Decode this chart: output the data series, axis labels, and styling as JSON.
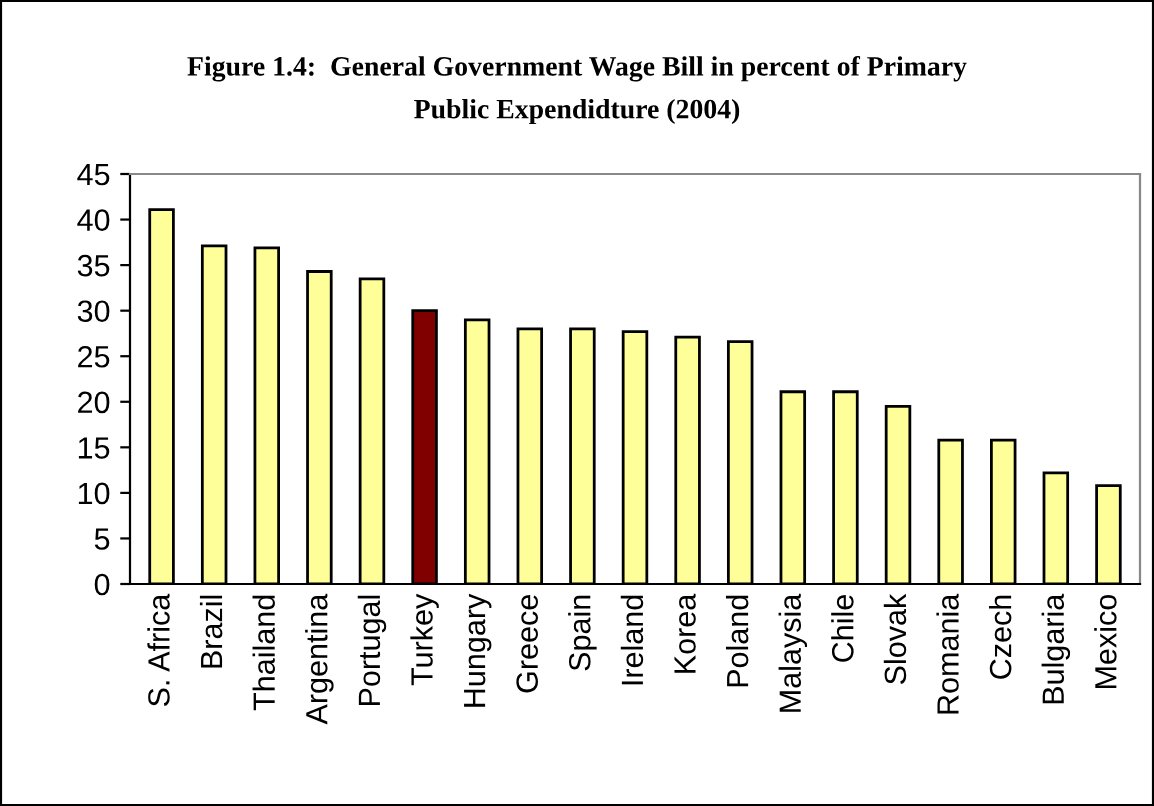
{
  "chart_data": {
    "type": "bar",
    "title": "Figure 1.4:  General Government Wage Bill in percent of Primary\nPublic Expendidture (2004)",
    "categories": [
      "S. Africa",
      "Brazil",
      "Thailand",
      "Argentina",
      "Portugal",
      "Turkey",
      "Hungary",
      "Greece",
      "Spain",
      "Ireland",
      "Korea",
      "Poland",
      "Malaysia",
      "Chile",
      "Slovak",
      "Romania",
      "Czech",
      "Bulgaria",
      "Mexico"
    ],
    "values": [
      41.1,
      37.1,
      36.9,
      34.3,
      33.5,
      30.0,
      29.0,
      28.0,
      28.0,
      27.7,
      27.1,
      26.6,
      21.1,
      21.1,
      19.5,
      15.8,
      15.8,
      12.2,
      10.8
    ],
    "colors": [
      "#ffff99",
      "#ffff99",
      "#ffff99",
      "#ffff99",
      "#ffff99",
      "#800000",
      "#ffff99",
      "#ffff99",
      "#ffff99",
      "#ffff99",
      "#ffff99",
      "#ffff99",
      "#ffff99",
      "#ffff99",
      "#ffff99",
      "#ffff99",
      "#ffff99",
      "#ffff99",
      "#ffff99"
    ],
    "ylim": [
      0,
      45
    ],
    "yticks": [
      0,
      5,
      10,
      15,
      20,
      25,
      30,
      35,
      40,
      45
    ],
    "grid": false,
    "legend": false
  }
}
